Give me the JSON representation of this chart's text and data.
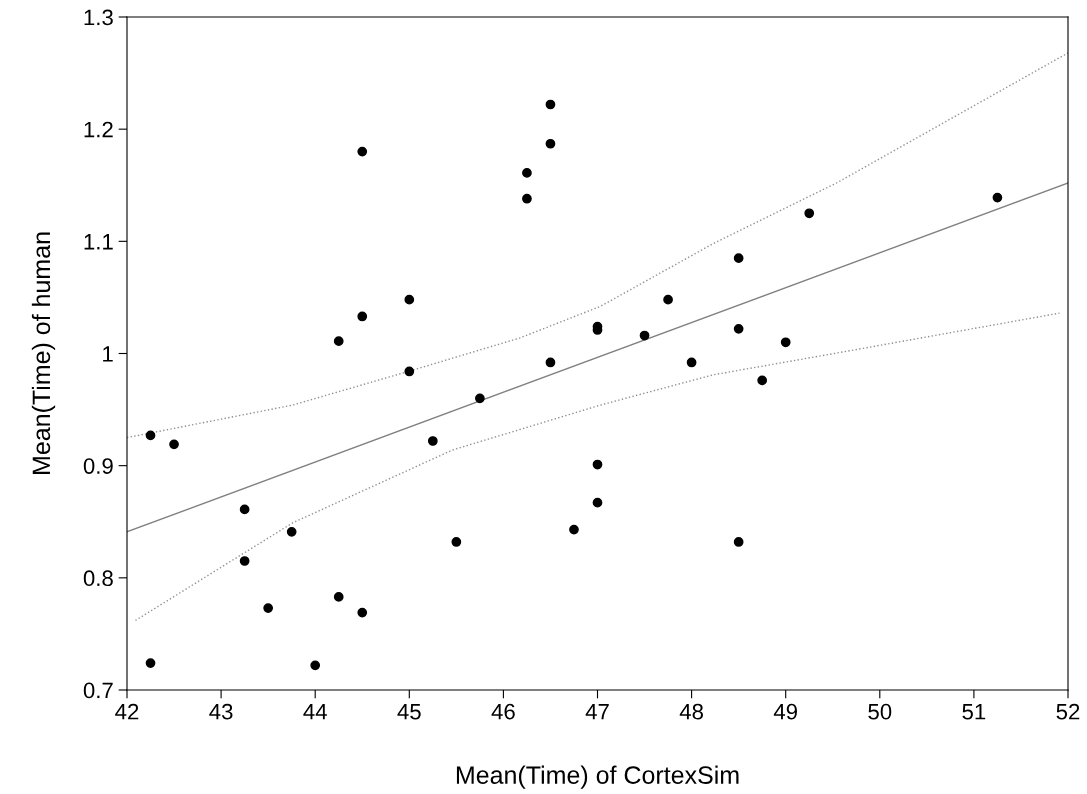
{
  "chart_data": {
    "type": "scatter",
    "xlabel": "Mean(Time) of CortexSim",
    "ylabel": "Mean(Time) of human",
    "xlim": [
      42,
      52
    ],
    "xticks": [
      42,
      43,
      44,
      45,
      46,
      47,
      48,
      49,
      50,
      51,
      52
    ],
    "ylim": [
      0.7,
      1.3
    ],
    "yticks": [
      0.7,
      0.8,
      0.9,
      1,
      1.1,
      1.2,
      1.3
    ],
    "grid": false,
    "series": [
      {
        "color": "#000000",
        "marker": "circle",
        "x": [
          44.5,
          46.5,
          46.5,
          46.25,
          46.25,
          45,
          44.5,
          44.25,
          45,
          46.5,
          45.75,
          47,
          47,
          47.5,
          47.75,
          48,
          48.5,
          48.5,
          49,
          48.75,
          49.25,
          51.25,
          42.25,
          42.5,
          45.25,
          43.25,
          43.75,
          43.25,
          43.5,
          44.25,
          44.5,
          42.25,
          44,
          45.5,
          46.75,
          47,
          47,
          48.5
        ],
        "values": [
          1.18,
          1.222,
          1.187,
          1.161,
          1.138,
          1.048,
          1.033,
          1.011,
          0.984,
          0.992,
          0.96,
          1.024,
          1.021,
          1.016,
          1.048,
          0.992,
          1.085,
          1.022,
          1.01,
          0.976,
          1.125,
          1.139,
          0.927,
          0.919,
          0.922,
          0.861,
          0.841,
          0.815,
          0.773,
          0.783,
          0.769,
          0.724,
          0.722,
          0.832,
          0.843,
          0.901,
          0.867,
          0.832
        ]
      },
      {
        "type": "line",
        "color": "#808080",
        "line_style": "solid",
        "marker": "none",
        "x": [
          42,
          52
        ],
        "values": [
          0.841,
          1.152
        ]
      },
      {
        "type": "line",
        "color": "#909090",
        "line_style": "dotted",
        "marker": "none",
        "x": [
          42,
          43.76,
          44.99,
          46.18,
          47.03,
          48.23,
          49.54,
          52
        ],
        "values": [
          0.925,
          0.954,
          0.984,
          1.014,
          1.042,
          1.098,
          1.152,
          1.268
        ]
      },
      {
        "type": "line",
        "color": "#909090",
        "line_style": "dotted",
        "marker": "none",
        "x": [
          42.09,
          43.76,
          45.46,
          47.03,
          48.23,
          49.65,
          51.91
        ],
        "values": [
          0.762,
          0.849,
          0.914,
          0.954,
          0.981,
          1.002,
          1.036
        ]
      }
    ]
  }
}
